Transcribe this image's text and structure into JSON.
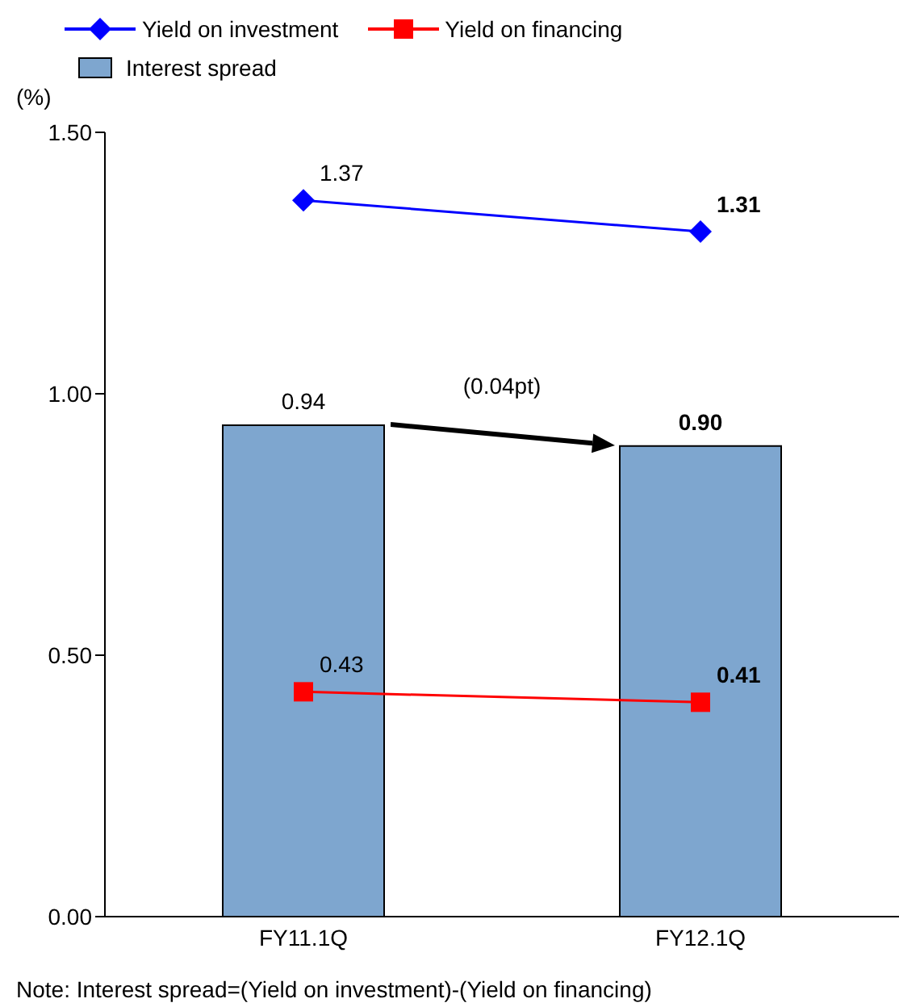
{
  "chart_data": {
    "type": "bar",
    "ylabel": "(%)",
    "categories": [
      "FY11.1Q",
      "FY12.1Q"
    ],
    "series": [
      {
        "name": "Interest spread",
        "color": "#7ea6cf",
        "values": [
          0.94,
          0.9
        ],
        "value_labels": [
          "0.94",
          "0.90"
        ]
      },
      {
        "name": "Yield on investment",
        "type": "line",
        "color": "#0000ff",
        "marker": "diamond",
        "values": [
          1.37,
          1.31
        ],
        "value_labels": [
          "1.37",
          "1.31"
        ]
      },
      {
        "name": "Yield on financing",
        "type": "line",
        "color": "#ff0000",
        "marker": "square",
        "values": [
          0.43,
          0.41
        ],
        "value_labels": [
          "0.43",
          "0.41"
        ]
      }
    ],
    "ylim": [
      0,
      1.5
    ],
    "yticks": [
      {
        "value": 0,
        "label": "0.00"
      },
      {
        "value": 0.5,
        "label": "0.50"
      },
      {
        "value": 1,
        "label": "1.00"
      },
      {
        "value": 1.5,
        "label": "1.50"
      }
    ],
    "grid": false,
    "legend": "top left",
    "annotations": [
      "(0.04pt)",
      "Note: Interest spread=(Yield on investment)-(Yield on financing)"
    ]
  }
}
